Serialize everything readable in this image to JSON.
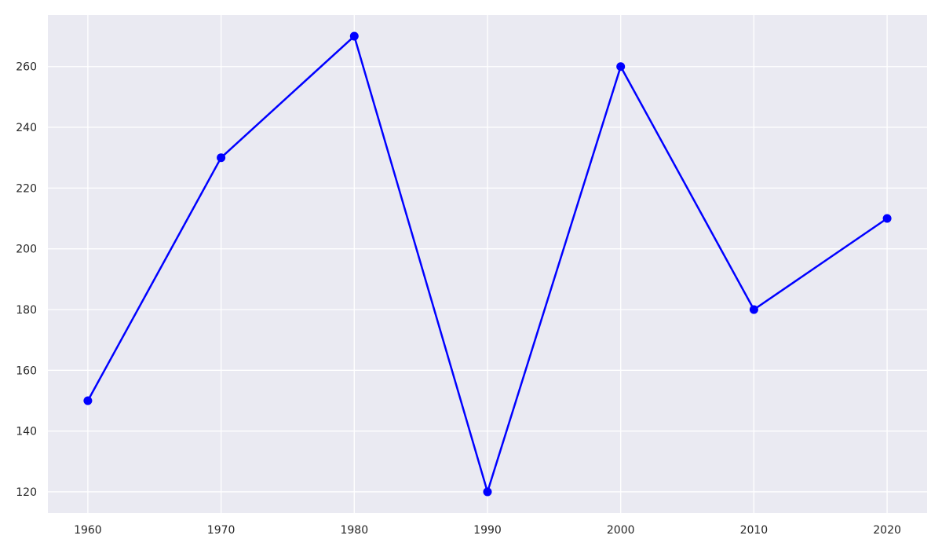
{
  "chart_data": {
    "type": "line",
    "x": [
      1960,
      1970,
      1980,
      1990,
      2000,
      2010,
      2020
    ],
    "series": [
      {
        "values": [
          150,
          230,
          270,
          120,
          260,
          180,
          210
        ]
      }
    ],
    "title": "",
    "xlabel": "",
    "ylabel": "",
    "xlim": [
      1957,
      2023
    ],
    "ylim": [
      113,
      277
    ],
    "x_ticks": [
      1960,
      1970,
      1980,
      1990,
      2000,
      2010,
      2020
    ],
    "y_ticks": [
      120,
      140,
      160,
      180,
      200,
      220,
      240,
      260
    ],
    "grid": true,
    "legend": "none",
    "colors": {
      "plot_background": "#eaeaf2",
      "grid": "#ffffff",
      "line": "#0000ff",
      "marker": "#0000ff",
      "tick_text": "#262626"
    }
  }
}
